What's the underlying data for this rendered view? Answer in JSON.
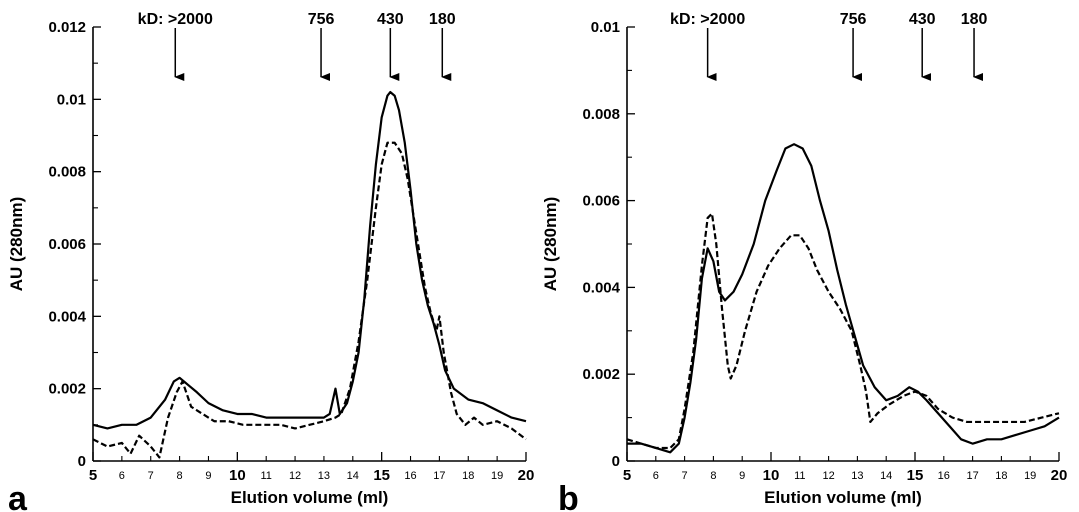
{
  "chart_data": [
    {
      "type": "line",
      "panel_label": "a",
      "xlabel": "Elution volume (ml)",
      "ylabel": "AU (280nm)",
      "xlim": [
        5,
        20
      ],
      "ylim": [
        0,
        0.012
      ],
      "x_major_ticks": [
        "5",
        "10",
        "15",
        "20"
      ],
      "x_minor_ticks": [
        "6",
        "7",
        "8",
        "9",
        "11",
        "12",
        "13",
        "14",
        "16",
        "17",
        "18",
        "19"
      ],
      "y_ticks": [
        "0",
        "0.002",
        "0.004",
        "0.006",
        "0.008",
        "0.01",
        "0.012"
      ],
      "markers": [
        {
          "label": "kD: >2000",
          "x": 7.85
        },
        {
          "label": "756",
          "x": 12.9
        },
        {
          "label": "430",
          "x": 15.3
        },
        {
          "label": "180",
          "x": 17.1
        }
      ],
      "series": [
        {
          "style": "solid",
          "points": [
            [
              5,
              0.001
            ],
            [
              5.5,
              0.0009
            ],
            [
              6,
              0.001
            ],
            [
              6.5,
              0.001
            ],
            [
              7,
              0.0012
            ],
            [
              7.5,
              0.0017
            ],
            [
              7.8,
              0.0022
            ],
            [
              8,
              0.0023
            ],
            [
              8.3,
              0.0021
            ],
            [
              8.6,
              0.0019
            ],
            [
              9,
              0.0016
            ],
            [
              9.5,
              0.0014
            ],
            [
              10,
              0.0013
            ],
            [
              10.5,
              0.0013
            ],
            [
              11,
              0.0012
            ],
            [
              11.5,
              0.0012
            ],
            [
              12,
              0.0012
            ],
            [
              12.5,
              0.0012
            ],
            [
              13,
              0.0012
            ],
            [
              13.2,
              0.0013
            ],
            [
              13.4,
              0.002
            ],
            [
              13.55,
              0.0013
            ],
            [
              13.8,
              0.0016
            ],
            [
              14,
              0.0022
            ],
            [
              14.2,
              0.003
            ],
            [
              14.4,
              0.0045
            ],
            [
              14.6,
              0.0065
            ],
            [
              14.8,
              0.0082
            ],
            [
              15,
              0.0095
            ],
            [
              15.2,
              0.0101
            ],
            [
              15.3,
              0.0102
            ],
            [
              15.45,
              0.0101
            ],
            [
              15.6,
              0.0097
            ],
            [
              15.8,
              0.0088
            ],
            [
              16,
              0.0075
            ],
            [
              16.2,
              0.006
            ],
            [
              16.4,
              0.005
            ],
            [
              16.6,
              0.0043
            ],
            [
              16.8,
              0.0038
            ],
            [
              17,
              0.0032
            ],
            [
              17.2,
              0.0025
            ],
            [
              17.5,
              0.002
            ],
            [
              18,
              0.0017
            ],
            [
              18.5,
              0.0016
            ],
            [
              19,
              0.0014
            ],
            [
              19.5,
              0.0012
            ],
            [
              20,
              0.0011
            ]
          ]
        },
        {
          "style": "dashed",
          "points": [
            [
              5,
              0.0006
            ],
            [
              5.5,
              0.0004
            ],
            [
              6,
              0.0005
            ],
            [
              6.3,
              0.0002
            ],
            [
              6.6,
              0.0007
            ],
            [
              7,
              0.0004
            ],
            [
              7.3,
              0.0001
            ],
            [
              7.6,
              0.0012
            ],
            [
              7.9,
              0.0019
            ],
            [
              8.1,
              0.0022
            ],
            [
              8.4,
              0.0015
            ],
            [
              8.8,
              0.0013
            ],
            [
              9.2,
              0.0011
            ],
            [
              9.7,
              0.0011
            ],
            [
              10.2,
              0.001
            ],
            [
              10.8,
              0.001
            ],
            [
              11.5,
              0.001
            ],
            [
              12,
              0.0009
            ],
            [
              12.5,
              0.001
            ],
            [
              13,
              0.0011
            ],
            [
              13.4,
              0.0012
            ],
            [
              13.6,
              0.0013
            ],
            [
              13.9,
              0.002
            ],
            [
              14.2,
              0.0033
            ],
            [
              14.5,
              0.005
            ],
            [
              14.8,
              0.007
            ],
            [
              15,
              0.0082
            ],
            [
              15.2,
              0.0088
            ],
            [
              15.45,
              0.0088
            ],
            [
              15.7,
              0.0085
            ],
            [
              15.9,
              0.0078
            ],
            [
              16.1,
              0.0068
            ],
            [
              16.3,
              0.0058
            ],
            [
              16.5,
              0.0048
            ],
            [
              16.7,
              0.0041
            ],
            [
              16.9,
              0.0036
            ],
            [
              17,
              0.004
            ],
            [
              17.15,
              0.003
            ],
            [
              17.4,
              0.0019
            ],
            [
              17.6,
              0.0013
            ],
            [
              17.9,
              0.001
            ],
            [
              18.2,
              0.0012
            ],
            [
              18.5,
              0.001
            ],
            [
              19,
              0.0011
            ],
            [
              19.5,
              0.0009
            ],
            [
              20,
              0.0006
            ]
          ]
        }
      ]
    },
    {
      "type": "line",
      "panel_label": "b",
      "xlabel": "Elution volume (ml)",
      "ylabel": "AU (280nm)",
      "xlim": [
        5,
        20
      ],
      "ylim": [
        0,
        0.01
      ],
      "x_major_ticks": [
        "5",
        "10",
        "15",
        "20"
      ],
      "x_minor_ticks": [
        "6",
        "7",
        "8",
        "9",
        "11",
        "12",
        "13",
        "14",
        "16",
        "17",
        "18",
        "19"
      ],
      "y_ticks": [
        "0",
        "0.002",
        "0.004",
        "0.006",
        "0.008",
        "0.01"
      ],
      "markers": [
        {
          "label": "kD: >2000",
          "x": 7.8
        },
        {
          "label": "756",
          "x": 12.85
        },
        {
          "label": "430",
          "x": 15.25
        },
        {
          "label": "180",
          "x": 17.05
        }
      ],
      "series": [
        {
          "style": "solid",
          "points": [
            [
              5,
              0.0004
            ],
            [
              5.5,
              0.0004
            ],
            [
              6,
              0.0003
            ],
            [
              6.5,
              0.0002
            ],
            [
              6.8,
              0.0004
            ],
            [
              7,
              0.001
            ],
            [
              7.2,
              0.0018
            ],
            [
              7.4,
              0.0028
            ],
            [
              7.6,
              0.0042
            ],
            [
              7.8,
              0.0049
            ],
            [
              8,
              0.0046
            ],
            [
              8.2,
              0.0039
            ],
            [
              8.4,
              0.0037
            ],
            [
              8.7,
              0.0039
            ],
            [
              9,
              0.0043
            ],
            [
              9.4,
              0.005
            ],
            [
              9.8,
              0.006
            ],
            [
              10.2,
              0.0067
            ],
            [
              10.5,
              0.0072
            ],
            [
              10.8,
              0.0073
            ],
            [
              11.1,
              0.0072
            ],
            [
              11.4,
              0.0068
            ],
            [
              11.7,
              0.006
            ],
            [
              12,
              0.0053
            ],
            [
              12.3,
              0.0044
            ],
            [
              12.6,
              0.0036
            ],
            [
              12.9,
              0.0029
            ],
            [
              13.2,
              0.0022
            ],
            [
              13.6,
              0.0017
            ],
            [
              14,
              0.0014
            ],
            [
              14.4,
              0.0015
            ],
            [
              14.8,
              0.0017
            ],
            [
              15.1,
              0.0016
            ],
            [
              15.4,
              0.0014
            ],
            [
              15.8,
              0.0011
            ],
            [
              16.2,
              0.0008
            ],
            [
              16.6,
              0.0005
            ],
            [
              17,
              0.0004
            ],
            [
              17.5,
              0.0005
            ],
            [
              18,
              0.0005
            ],
            [
              18.5,
              0.0006
            ],
            [
              19,
              0.0007
            ],
            [
              19.5,
              0.0008
            ],
            [
              20,
              0.001
            ]
          ]
        },
        {
          "style": "dashed",
          "points": [
            [
              5,
              0.0005
            ],
            [
              5.5,
              0.0004
            ],
            [
              6,
              0.0003
            ],
            [
              6.5,
              0.0003
            ],
            [
              6.8,
              0.0005
            ],
            [
              7,
              0.0012
            ],
            [
              7.3,
              0.0025
            ],
            [
              7.6,
              0.0045
            ],
            [
              7.8,
              0.0056
            ],
            [
              7.95,
              0.0057
            ],
            [
              8.1,
              0.005
            ],
            [
              8.3,
              0.0035
            ],
            [
              8.5,
              0.0022
            ],
            [
              8.6,
              0.0019
            ],
            [
              8.8,
              0.0022
            ],
            [
              9.1,
              0.003
            ],
            [
              9.5,
              0.0039
            ],
            [
              9.9,
              0.0045
            ],
            [
              10.3,
              0.0049
            ],
            [
              10.7,
              0.0052
            ],
            [
              11,
              0.0052
            ],
            [
              11.3,
              0.0049
            ],
            [
              11.6,
              0.0044
            ],
            [
              12,
              0.0039
            ],
            [
              12.4,
              0.0035
            ],
            [
              12.8,
              0.003
            ],
            [
              13.1,
              0.0022
            ],
            [
              13.3,
              0.0016
            ],
            [
              13.45,
              0.0009
            ],
            [
              13.7,
              0.0011
            ],
            [
              14.1,
              0.0013
            ],
            [
              14.6,
              0.0015
            ],
            [
              15,
              0.0016
            ],
            [
              15.4,
              0.0015
            ],
            [
              15.8,
              0.0012
            ],
            [
              16.3,
              0.001
            ],
            [
              16.8,
              0.0009
            ],
            [
              17.5,
              0.0009
            ],
            [
              18.2,
              0.0009
            ],
            [
              18.8,
              0.0009
            ],
            [
              19.4,
              0.001
            ],
            [
              20,
              0.0011
            ]
          ]
        }
      ]
    }
  ]
}
